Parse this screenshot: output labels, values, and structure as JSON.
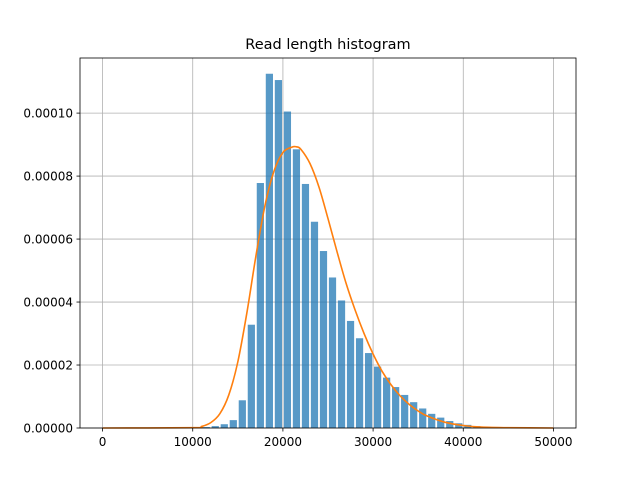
{
  "chart_data": {
    "type": "bar",
    "title": "Read length histogram",
    "xlabel": "",
    "ylabel": "",
    "xlim": [
      -2500,
      52500
    ],
    "ylim": [
      0,
      0.0001175
    ],
    "grid": true,
    "x_ticks": [
      0,
      10000,
      20000,
      30000,
      40000,
      50000
    ],
    "x_tick_labels": [
      "0",
      "10000",
      "20000",
      "30000",
      "40000",
      "50000"
    ],
    "y_ticks": [
      0,
      2e-05,
      4e-05,
      6e-05,
      8e-05,
      0.0001
    ],
    "y_tick_labels": [
      "0.00000",
      "0.00002",
      "0.00004",
      "0.00006",
      "0.00008",
      "0.00010"
    ],
    "bar_color": "#1f77b4",
    "bar_opacity": 0.75,
    "curve_color": "#ff7f0e",
    "bin_width": 1000,
    "bins": {
      "x": [
        11500,
        12500,
        13500,
        14500,
        15500,
        16500,
        17500,
        18500,
        19500,
        20500,
        21500,
        22500,
        23500,
        24500,
        25500,
        26500,
        27500,
        28500,
        29500,
        30500,
        31500,
        32500,
        33500,
        34500,
        35500,
        36500,
        37500,
        38500,
        39500,
        40500,
        41500,
        42500
      ],
      "density": [
        3e-07,
        6e-07,
        1.2e-06,
        2.5e-06,
        8.8e-06,
        3.28e-05,
        7.78e-05,
        0.0001125,
        0.0001105,
        0.0001005,
        8.85e-05,
        7.75e-05,
        6.55e-05,
        5.62e-05,
        4.78e-05,
        4.05e-05,
        3.4e-05,
        2.85e-05,
        2.38e-05,
        1.95e-05,
        1.6e-05,
        1.3e-05,
        1.05e-05,
        8.2e-06,
        6.2e-06,
        4.5e-06,
        3.3e-06,
        2.2e-06,
        1.5e-06,
        1e-06,
        6e-07,
        3e-07
      ]
    },
    "fit_curve": {
      "x": [
        0,
        10000,
        11000,
        12000,
        13000,
        14000,
        15000,
        16000,
        17000,
        18000,
        19000,
        20000,
        21000,
        21500,
        22000,
        23000,
        24000,
        25000,
        26000,
        27000,
        28000,
        29000,
        30000,
        31000,
        32000,
        33000,
        34000,
        35000,
        36000,
        38000,
        40000,
        42000,
        45000,
        50000
      ],
      "y": [
        0,
        1e-07,
        5e-07,
        1.7e-06,
        4.5e-06,
        1.05e-05,
        2.1e-05,
        3.65e-05,
        5.45e-05,
        7.05e-05,
        8.15e-05,
        8.75e-05,
        8.92e-05,
        8.93e-05,
        8.85e-05,
        8.4e-05,
        7.65e-05,
        6.65e-05,
        5.6e-05,
        4.6e-05,
        3.75e-05,
        3e-05,
        2.35e-05,
        1.8e-05,
        1.37e-05,
        1.02e-05,
        7.5e-06,
        5.4e-06,
        3.8e-06,
        1.8e-06,
        8e-07,
        3e-07,
        1e-07,
        0
      ]
    }
  }
}
